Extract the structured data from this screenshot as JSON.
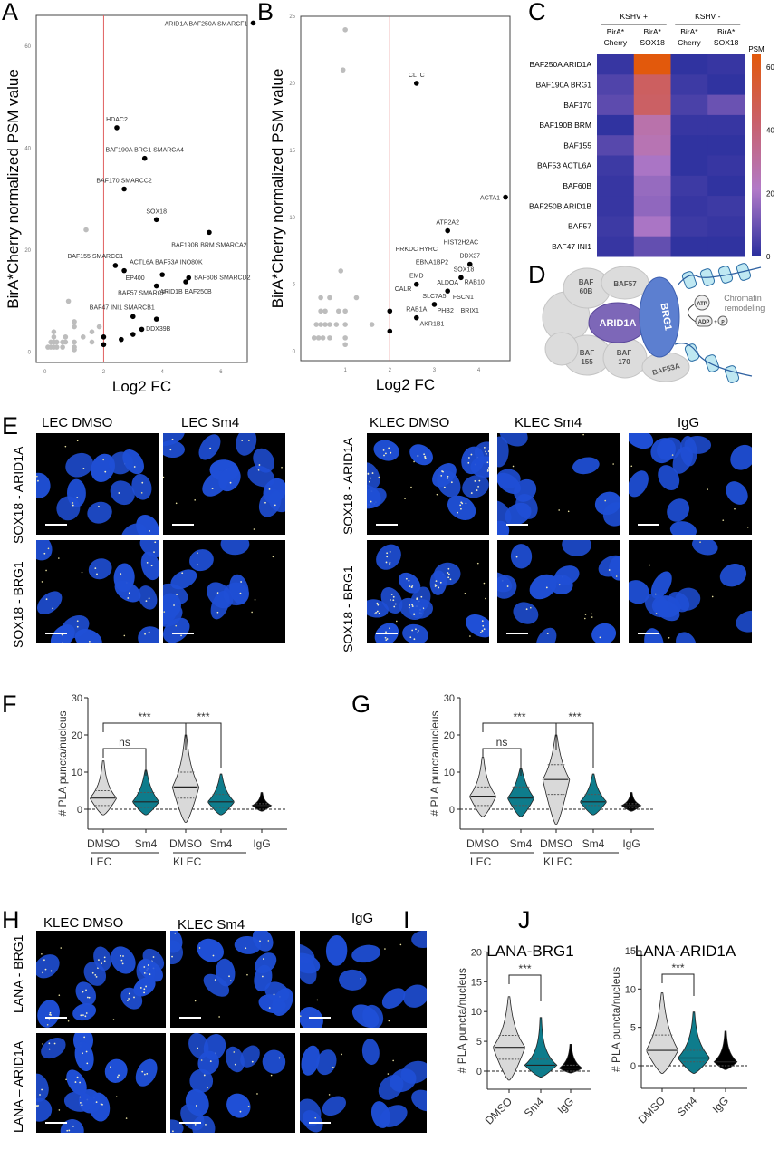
{
  "panels": {
    "A": "A",
    "B": "B",
    "C": "C",
    "D": "D",
    "E": "E",
    "F": "F",
    "G": "G",
    "H": "H",
    "I": "I",
    "J": "J"
  },
  "colors": {
    "grey_point": "#bdbdbd",
    "sig_point": "#000000",
    "threshold": "#e06060",
    "dmso_fill": "#d9d9d9",
    "sm4_fill": "#0e7c8c",
    "igg_fill": "#000000",
    "nucleus": "#1f4fd6"
  },
  "panel_e": {
    "columns": [
      "LEC  DMSO",
      "LEC Sm4",
      "KLEC DMSO",
      "KLEC Sm4",
      "IgG"
    ],
    "rows": [
      "SOX18 - ARID1A",
      "SOX18 - BRG1"
    ]
  },
  "panel_h": {
    "columns": [
      "KLEC DMSO",
      "KLEC Sm4",
      "IgG"
    ],
    "rows": [
      "LANA - BRG1",
      "LANA – ARID1A"
    ]
  },
  "panel_d": {
    "labels": {
      "baf60b_1": "BAF",
      "baf60b_2": "60B",
      "baf57": "BAF57",
      "arid1a": "ARID1A",
      "brg1": "BRG1",
      "baf155_1": "BAF",
      "baf155_2": "155",
      "baf170_1": "BAF",
      "baf170_2": "170",
      "baf53a": "BAF53A",
      "atp": "ATP",
      "adp": "ADP",
      "pi": "P",
      "plus": "+",
      "chromatin_1": "Chromatin",
      "chromatin_2": "remodeling"
    }
  },
  "chart_data": [
    {
      "id": "A",
      "type": "scatter",
      "xlabel": "Log2 FC",
      "ylabel": "BirA*Cherry normalized PSM value",
      "xlim": [
        -0.3,
        6.9
      ],
      "ylim": [
        -2,
        66
      ],
      "xticks": [
        "0",
        "2",
        "4",
        "6"
      ],
      "yticks": [
        "0",
        "20",
        "40",
        "60"
      ],
      "threshold_x": 2,
      "points": [
        {
          "x": 7.1,
          "y": 64.5,
          "label": "ARID1A BAF250A SMARCF1",
          "sig": true
        },
        {
          "x": 2.45,
          "y": 44,
          "label": "HDAC2",
          "sig": true
        },
        {
          "x": 3.4,
          "y": 38,
          "label": "BAF190A BRG1 SMARCA4",
          "sig": true
        },
        {
          "x": 2.7,
          "y": 32,
          "label": "BAF170 SMARCC2",
          "sig": true
        },
        {
          "x": 3.8,
          "y": 26,
          "label": "SOX18",
          "sig": true
        },
        {
          "x": 5.6,
          "y": 23.5,
          "label": "BAF190B BRM SMARCA2",
          "sig": true
        },
        {
          "x": 2.4,
          "y": 17,
          "label": "BAF155 SMARCC1",
          "sig": true
        },
        {
          "x": 2.7,
          "y": 16,
          "label": "ACTL6A BAF53A INO80K",
          "sig": true
        },
        {
          "x": 4.0,
          "y": 15.2,
          "label": "EP400",
          "sig": true
        },
        {
          "x": 4.9,
          "y": 14.6,
          "label": "BAF60B SMARCD2",
          "sig": true
        },
        {
          "x": 4.8,
          "y": 13.8,
          "label": "ARID1B BAF250B",
          "sig": true
        },
        {
          "x": 3.8,
          "y": 13,
          "label": "BAF57 SMARCE1",
          "sig": true
        },
        {
          "x": 3.0,
          "y": 7,
          "label": "BAF47 INI1 SMARCB1",
          "sig": true
        },
        {
          "x": 3.8,
          "y": 6.5,
          "label": "DDX39B",
          "sig": true
        },
        {
          "x": 3.3,
          "y": 4.5,
          "sig": true
        },
        {
          "x": 3.0,
          "y": 3.5,
          "sig": true
        },
        {
          "x": 2.6,
          "y": 2.5,
          "sig": true
        },
        {
          "x": 2.0,
          "y": 3,
          "sig": true
        },
        {
          "x": 2.0,
          "y": 1.5,
          "sig": true
        },
        {
          "x": 0.1,
          "y": 1
        },
        {
          "x": 0.2,
          "y": 1
        },
        {
          "x": 0.3,
          "y": 1
        },
        {
          "x": 0.4,
          "y": 1
        },
        {
          "x": 0.6,
          "y": 1
        },
        {
          "x": 0.2,
          "y": 2
        },
        {
          "x": 0.3,
          "y": 2
        },
        {
          "x": 0.4,
          "y": 2
        },
        {
          "x": 0.6,
          "y": 2
        },
        {
          "x": 0.7,
          "y": 2
        },
        {
          "x": 0.3,
          "y": 3
        },
        {
          "x": 0.7,
          "y": 3
        },
        {
          "x": 0.3,
          "y": 4
        },
        {
          "x": 1,
          "y": 1
        },
        {
          "x": 1,
          "y": 0.5
        },
        {
          "x": 1,
          "y": 2
        },
        {
          "x": 1,
          "y": 5
        },
        {
          "x": 1,
          "y": 6
        },
        {
          "x": 1.3,
          "y": 3
        },
        {
          "x": 1.6,
          "y": 2
        },
        {
          "x": 1.6,
          "y": 4
        },
        {
          "x": 1.85,
          "y": 5
        },
        {
          "x": 0.8,
          "y": 10
        },
        {
          "x": 1.4,
          "y": 24
        }
      ]
    },
    {
      "id": "B",
      "type": "scatter",
      "xlabel": "Log2 FC",
      "ylabel": "BirA*Cherry normalized PSM value",
      "xlim": [
        0,
        4.8
      ],
      "ylim": [
        -0.5,
        25
      ],
      "xticks": [
        "1",
        "2",
        "3",
        "4"
      ],
      "yticks": [
        "0",
        "5",
        "10",
        "15",
        "20",
        "25"
      ],
      "threshold_x": 2,
      "points": [
        {
          "x": 2.6,
          "y": 20,
          "label": "CLTC",
          "sig": true
        },
        {
          "x": 4.6,
          "y": 11.5,
          "label": "ACTA1",
          "sig": true
        },
        {
          "x": 3.3,
          "y": 9,
          "label": "ATP2A2",
          "sig": true
        },
        {
          "x": 3.8,
          "y": 6.5,
          "label": "DDX27",
          "sig": true
        },
        {
          "x": 3.6,
          "y": 5.5,
          "label": "SOX18",
          "sig": true
        },
        {
          "x": 2.6,
          "y": 5,
          "label": "EMD",
          "sig": true
        },
        {
          "x": 3.3,
          "y": 4.5,
          "label": "ALDOA",
          "sig": true
        },
        {
          "x": 3.0,
          "y": 3.5,
          "label": "SLC7A5",
          "sig": true
        },
        {
          "x": 2.6,
          "y": 2.5,
          "label": "RAB1A",
          "sig": true
        },
        {
          "x": 2.0,
          "y": 3,
          "sig": true
        },
        {
          "x": 2.0,
          "y": 1.5,
          "sig": true
        },
        {
          "x": 0.3,
          "y": 1
        },
        {
          "x": 0.4,
          "y": 1
        },
        {
          "x": 0.5,
          "y": 1
        },
        {
          "x": 0.65,
          "y": 1
        },
        {
          "x": 1,
          "y": 1
        },
        {
          "x": 1,
          "y": 0.5
        },
        {
          "x": 0.35,
          "y": 2
        },
        {
          "x": 0.45,
          "y": 2
        },
        {
          "x": 0.55,
          "y": 2
        },
        {
          "x": 0.65,
          "y": 2
        },
        {
          "x": 0.8,
          "y": 2
        },
        {
          "x": 1,
          "y": 2
        },
        {
          "x": 1.6,
          "y": 2
        },
        {
          "x": 0.45,
          "y": 3
        },
        {
          "x": 0.55,
          "y": 3
        },
        {
          "x": 0.85,
          "y": 3
        },
        {
          "x": 1,
          "y": 3
        },
        {
          "x": 0.45,
          "y": 4
        },
        {
          "x": 0.65,
          "y": 4
        },
        {
          "x": 1.25,
          "y": 4
        },
        {
          "x": 0.9,
          "y": 6
        },
        {
          "x": 0.95,
          "y": 21
        },
        {
          "x": 1,
          "y": 24
        }
      ],
      "annotations": [
        {
          "text": "HIST2H2AC",
          "x": 3.6,
          "y": 8.0
        },
        {
          "text": "PRKDC HYRC",
          "x": 2.6,
          "y": 7.5
        },
        {
          "text": "EBNA1BP2",
          "x": 2.95,
          "y": 6.5
        },
        {
          "text": "RAB10",
          "x": 3.9,
          "y": 5.0
        },
        {
          "text": "CALR",
          "x": 2.3,
          "y": 4.5
        },
        {
          "text": "FSCN1",
          "x": 3.65,
          "y": 3.9
        },
        {
          "text": "PHB2",
          "x": 3.25,
          "y": 2.9
        },
        {
          "text": "BRIX1",
          "x": 3.8,
          "y": 2.9
        },
        {
          "text": "AKR1B1",
          "x": 2.95,
          "y": 1.9
        }
      ]
    },
    {
      "id": "C",
      "type": "heatmap",
      "groups": [
        "KSHV +",
        "KSHV -"
      ],
      "columns": [
        [
          "BirA*",
          "Cherry"
        ],
        [
          "BirA*",
          "SOX18"
        ],
        [
          "BirA*",
          "Cherry"
        ],
        [
          "BirA*",
          "SOX18"
        ]
      ],
      "rows": [
        "BAF250A ARID1A",
        "BAF190A BRG1",
        "BAF170",
        "BAF190B BRM",
        "BAF155",
        "BAF53 ACTL6A",
        "BAF60B",
        "BAF250B ARID1B",
        "BAF57",
        "BAF47 INI1"
      ],
      "values": [
        [
          2,
          64,
          1,
          2
        ],
        [
          6,
          45,
          3,
          1
        ],
        [
          8,
          44,
          5,
          10
        ],
        [
          1,
          28,
          2,
          2
        ],
        [
          7,
          26,
          1,
          1
        ],
        [
          3,
          20,
          1,
          2
        ],
        [
          2,
          17,
          3,
          1
        ],
        [
          2,
          16,
          2,
          3
        ],
        [
          3,
          20,
          3,
          2
        ],
        [
          2,
          9,
          1,
          1
        ]
      ],
      "colorbar_title": "PSM",
      "colorbar_ticks": [
        "0",
        "20",
        "40",
        "60"
      ],
      "zlim": [
        0,
        64
      ],
      "colorscale": [
        "#2a2f9e",
        "#b27ac8",
        "#c9606a",
        "#e2590c"
      ]
    },
    {
      "id": "F",
      "type": "violin",
      "ylabel": "# PLA puncta/nucleus",
      "ylim": [
        -5,
        30
      ],
      "yticks": [
        "0",
        "10",
        "20",
        "30"
      ],
      "categories": [
        "DMSO",
        "Sm4",
        "DMSO",
        "Sm4",
        "IgG"
      ],
      "groups": [
        "LEC",
        "KLEC"
      ],
      "violins": [
        {
          "median": 3,
          "q1": 1,
          "q3": 5,
          "min": -1.5,
          "max": 13,
          "fill": "dmso"
        },
        {
          "median": 2,
          "q1": 0.5,
          "q3": 4.5,
          "min": -1.5,
          "max": 10.5,
          "fill": "sm4"
        },
        {
          "median": 6,
          "q1": 3,
          "q3": 10,
          "min": -3.5,
          "max": 20,
          "fill": "dmso"
        },
        {
          "median": 2,
          "q1": 0.5,
          "q3": 4,
          "min": -1.5,
          "max": 9.5,
          "fill": "sm4"
        },
        {
          "median": 1,
          "q1": 0,
          "q3": 1.5,
          "min": -0.5,
          "max": 4.5,
          "fill": "igg"
        }
      ],
      "significance": [
        {
          "a": 0,
          "b": 1,
          "text": "ns"
        },
        {
          "a": 0,
          "b": 2,
          "text": "***"
        },
        {
          "a": 2,
          "b": 3,
          "text": "***"
        }
      ]
    },
    {
      "id": "G",
      "type": "violin",
      "ylabel": "# PLA puncta/nucleus",
      "ylim": [
        -5,
        30
      ],
      "yticks": [
        "0",
        "10",
        "20",
        "30"
      ],
      "categories": [
        "DMSO",
        "Sm4",
        "DMSO",
        "Sm4",
        "IgG"
      ],
      "groups": [
        "LEC",
        "KLEC"
      ],
      "violins": [
        {
          "median": 3.5,
          "q1": 1,
          "q3": 6,
          "min": -2,
          "max": 14,
          "fill": "dmso"
        },
        {
          "median": 3,
          "q1": 1,
          "q3": 6,
          "min": -2,
          "max": 11,
          "fill": "sm4"
        },
        {
          "median": 8,
          "q1": 4,
          "q3": 12,
          "min": -4,
          "max": 20,
          "fill": "dmso"
        },
        {
          "median": 2,
          "q1": 1,
          "q3": 4,
          "min": -1.5,
          "max": 9.5,
          "fill": "sm4"
        },
        {
          "median": 1,
          "q1": 0.5,
          "q3": 1.5,
          "min": -0.5,
          "max": 4.5,
          "fill": "igg"
        }
      ],
      "significance": [
        {
          "a": 0,
          "b": 1,
          "text": "ns"
        },
        {
          "a": 0,
          "b": 2,
          "text": "***"
        },
        {
          "a": 2,
          "b": 3,
          "text": "***"
        }
      ]
    },
    {
      "id": "I",
      "type": "violin",
      "title": "LANA-BRG1",
      "ylabel": "# PLA puncta/nucleus",
      "ylim": [
        -3,
        20
      ],
      "yticks": [
        "0",
        "5",
        "10",
        "15",
        "20"
      ],
      "categories": [
        "DMSO",
        "Sm4",
        "IgG"
      ],
      "violins": [
        {
          "median": 4,
          "q1": 2,
          "q3": 6,
          "min": -1.5,
          "max": 12.5,
          "fill": "dmso"
        },
        {
          "median": 1,
          "q1": 0.5,
          "q3": 2,
          "min": -1,
          "max": 9,
          "fill": "sm4"
        },
        {
          "median": 0.5,
          "q1": 0,
          "q3": 1,
          "min": -0.3,
          "max": 4.5,
          "fill": "igg"
        }
      ],
      "significance": [
        {
          "a": 0,
          "b": 1,
          "text": "***"
        }
      ]
    },
    {
      "id": "J",
      "type": "violin",
      "title": "LANA-ARID1A",
      "ylabel": "# PLA puncta/nucleus",
      "ylim": [
        -3,
        15
      ],
      "yticks": [
        "0",
        "5",
        "10",
        "15"
      ],
      "categories": [
        "DMSO",
        "Sm4",
        "IgG"
      ],
      "violins": [
        {
          "median": 2,
          "q1": 1,
          "q3": 4,
          "min": -1,
          "max": 9.5,
          "fill": "dmso"
        },
        {
          "median": 1,
          "q1": 0.5,
          "q3": 2,
          "min": -1,
          "max": 7,
          "fill": "sm4"
        },
        {
          "median": 0.5,
          "q1": 0,
          "q3": 1,
          "min": -0.5,
          "max": 4.5,
          "fill": "igg"
        }
      ],
      "significance": [
        {
          "a": 0,
          "b": 1,
          "text": "***"
        }
      ]
    }
  ]
}
